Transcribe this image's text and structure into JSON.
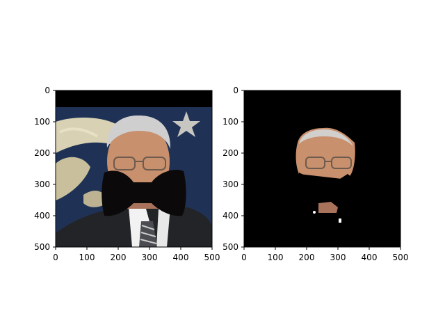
{
  "chart_data": [
    {
      "type": "image",
      "panel": "left",
      "description_of_content": "photo",
      "xlim": [
        0,
        500
      ],
      "ylim": [
        500,
        0
      ],
      "x_ticks": [
        0,
        100,
        200,
        300,
        400,
        500
      ],
      "y_ticks": [
        0,
        100,
        200,
        300,
        400,
        500
      ],
      "x_tick_labels": [
        "0",
        "100",
        "200",
        "300",
        "400",
        "500"
      ],
      "y_tick_labels": [
        "0",
        "100",
        "200",
        "300",
        "400",
        "500"
      ]
    },
    {
      "type": "image",
      "panel": "right",
      "description_of_content": "masked",
      "xlim": [
        0,
        500
      ],
      "ylim": [
        500,
        0
      ],
      "x_ticks": [
        0,
        100,
        200,
        300,
        400,
        500
      ],
      "y_ticks": [
        0,
        100,
        200,
        300,
        400,
        500
      ],
      "x_tick_labels": [
        "0",
        "100",
        "200",
        "300",
        "400",
        "500"
      ],
      "y_tick_labels": [
        "0",
        "100",
        "200",
        "300",
        "400",
        "500"
      ]
    }
  ],
  "colors": {
    "background": "#000000",
    "skin": "#c9906e",
    "hair": "#cfcfcf",
    "suit": "#222428",
    "shirt": "#f2f2f2",
    "flag_blue": "#253a5e",
    "flag_cream": "#d9d1b4",
    "bowtie": "#0b0909"
  }
}
